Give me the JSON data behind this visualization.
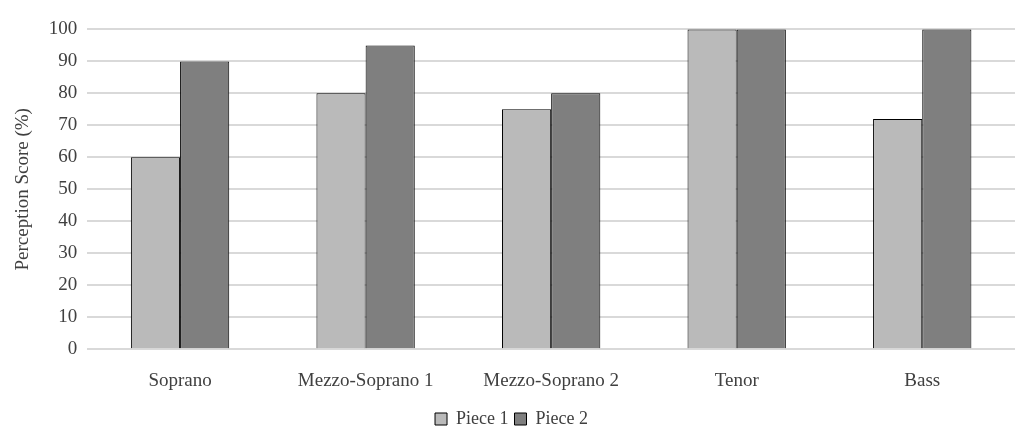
{
  "chart_data": {
    "type": "bar",
    "ylabel": "Perception Score (%)",
    "categories": [
      "Soprano",
      "Mezzo-Soprano 1",
      "Mezzo-Soprano 2",
      "Tenor",
      "Bass"
    ],
    "series": [
      {
        "name": "Piece 1",
        "color": "#bababa",
        "values": [
          60,
          80,
          75,
          100,
          72
        ]
      },
      {
        "name": "Piece 2",
        "color": "#7f7f7f",
        "values": [
          90,
          95,
          80,
          100,
          100
        ]
      }
    ],
    "ylim": [
      0,
      100
    ],
    "yticks": [
      0,
      10,
      20,
      30,
      40,
      50,
      60,
      70,
      80,
      90,
      100
    ],
    "grid": "y",
    "legend": "bottom"
  }
}
